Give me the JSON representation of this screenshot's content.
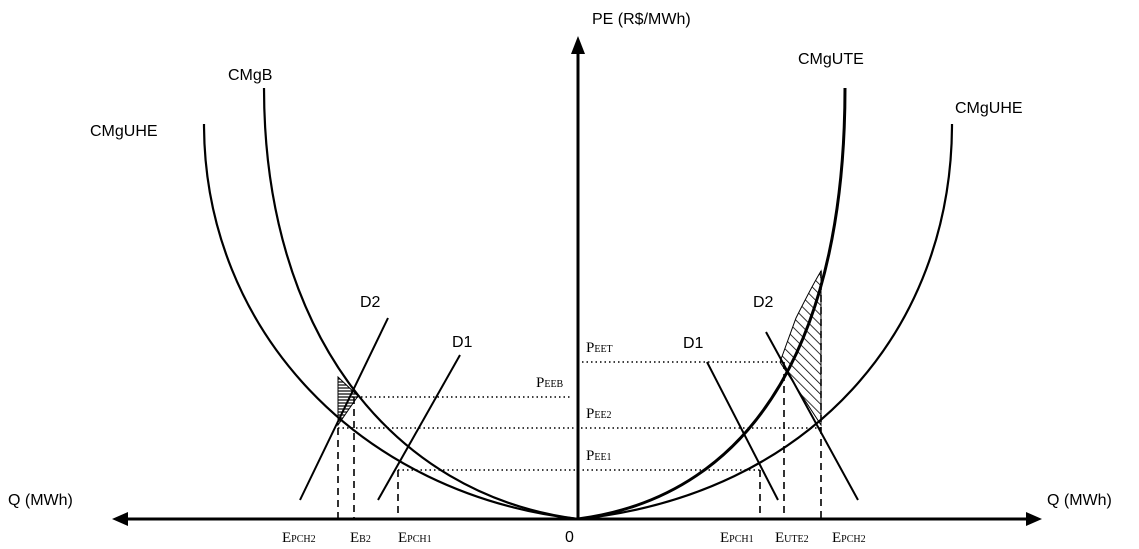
{
  "axes": {
    "y_label": "PE (R$/MWh)",
    "x_label_left": "Q (MWh)",
    "x_label_right": "Q (MWh)",
    "origin_label": "0"
  },
  "curves": {
    "cmg_uhe_left": "CMgUHE",
    "cmg_b": "CMgB",
    "cmg_ute": "CMgUTE",
    "cmg_uhe_right": "CMgUHE"
  },
  "demand": {
    "d2_left": "D2",
    "d1_left": "D1",
    "d1_right": "D1",
    "d2_right": "D2"
  },
  "prices": {
    "peet": {
      "main": "P",
      "sub": "EET"
    },
    "peeb": {
      "main": "P",
      "sub": "EEB"
    },
    "pee2": {
      "main": "P",
      "sub": "EE2"
    },
    "pee1": {
      "main": "P",
      "sub": "EE1"
    }
  },
  "quantities": {
    "epch2_left": {
      "main": "E",
      "sub": "PCH2"
    },
    "eb2": {
      "main": "E",
      "sub": "B2"
    },
    "epch1_left": {
      "main": "E",
      "sub": "PCH1"
    },
    "epch1_right": {
      "main": "E",
      "sub": "PCH1"
    },
    "eute2": {
      "main": "E",
      "sub": "UTE2"
    },
    "epch2_right": {
      "main": "E",
      "sub": "PCH2"
    }
  }
}
